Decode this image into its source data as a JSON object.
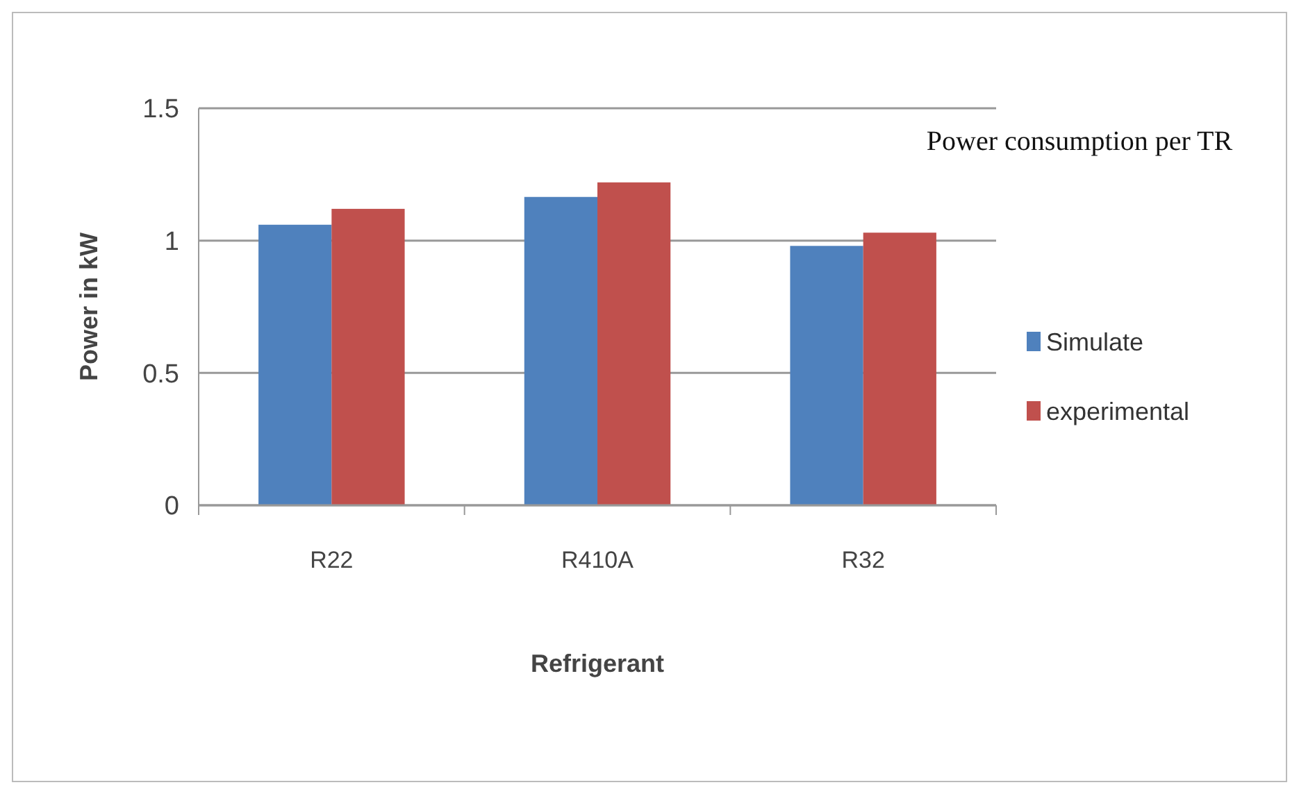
{
  "chart_data": {
    "type": "bar",
    "title": "Power consumption per TR",
    "xlabel": "Refrigerant",
    "ylabel": "Power in kW",
    "categories": [
      "R22",
      "R410A",
      "R32"
    ],
    "series": [
      {
        "name": "Simulate",
        "color": "#4f81bd",
        "values": [
          1.06,
          1.165,
          0.98
        ]
      },
      {
        "name": "experimental",
        "color": "#c0504d",
        "values": [
          1.12,
          1.22,
          1.03
        ]
      }
    ],
    "ylim": [
      0,
      1.5
    ],
    "yticks": [
      0,
      0.5,
      1,
      1.5
    ],
    "grid": "y",
    "legend": "right"
  }
}
